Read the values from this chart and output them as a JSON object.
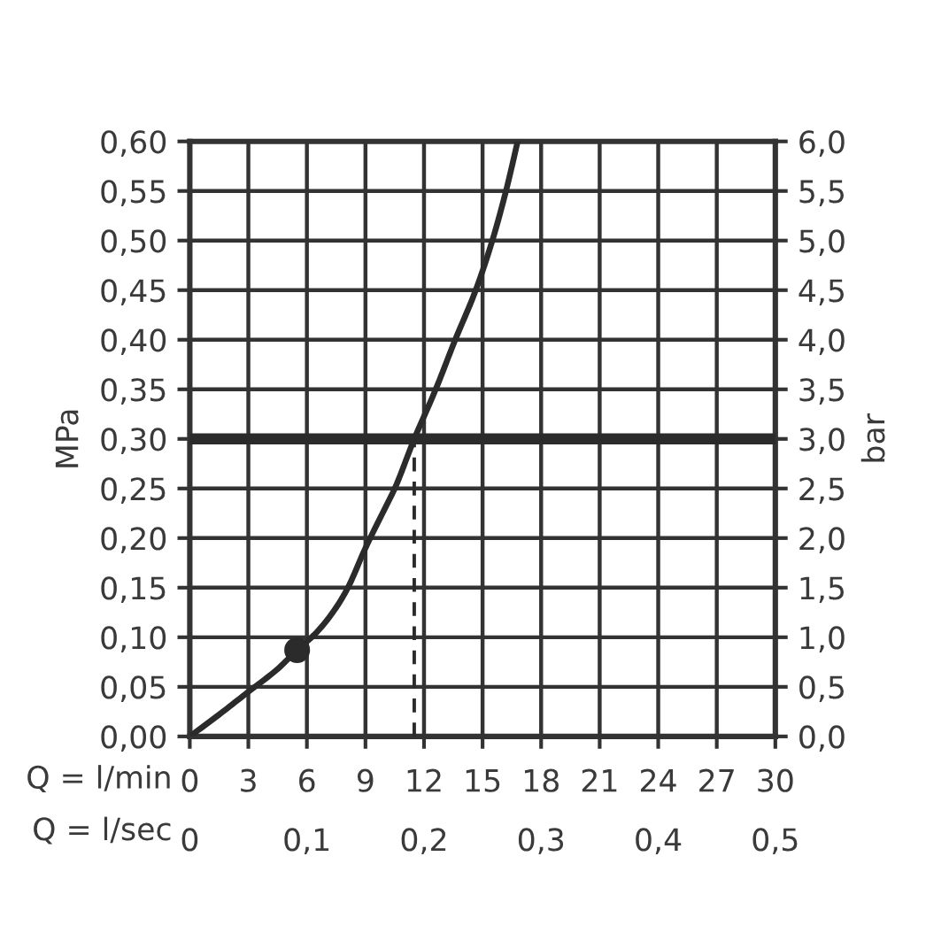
{
  "chart_data": {
    "type": "line",
    "xlabel": "Q = l/min",
    "x2label": "Q = l/sec",
    "ylabel": "MPa",
    "y2label": "bar",
    "xlim": [
      0,
      30
    ],
    "xticks": [
      0,
      3,
      6,
      9,
      12,
      15,
      18,
      21,
      24,
      27,
      30
    ],
    "x2lim": [
      0,
      0.5
    ],
    "x2ticks": [
      0,
      {
        "value": 0.1,
        "label": "0,1"
      },
      {
        "value": 0.2,
        "label": "0,2"
      },
      {
        "value": 0.3,
        "label": "0,3"
      },
      {
        "value": 0.4,
        "label": "0,4"
      },
      {
        "value": 0.5,
        "label": "0,5"
      }
    ],
    "ylim": [
      0,
      0.6
    ],
    "yticks": [
      {
        "value": 0,
        "label": "0,00"
      },
      {
        "value": 0.05,
        "label": "0,05"
      },
      {
        "value": 0.1,
        "label": "0,10"
      },
      {
        "value": 0.15,
        "label": "0,15"
      },
      {
        "value": 0.2,
        "label": "0,20"
      },
      {
        "value": 0.25,
        "label": "0,25"
      },
      {
        "value": 0.3,
        "label": "0,30"
      },
      {
        "value": 0.35,
        "label": "0,35"
      },
      {
        "value": 0.4,
        "label": "0,40"
      },
      {
        "value": 0.45,
        "label": "0,45"
      },
      {
        "value": 0.5,
        "label": "0,50"
      },
      {
        "value": 0.55,
        "label": "0,55"
      },
      {
        "value": 0.6,
        "label": "0,60"
      }
    ],
    "y2lim": [
      0,
      6
    ],
    "y2ticks": [
      {
        "value": 0,
        "label": "0,0"
      },
      {
        "value": 0.5,
        "label": "0,5"
      },
      {
        "value": 1,
        "label": "1,0"
      },
      {
        "value": 1.5,
        "label": "1,5"
      },
      {
        "value": 2,
        "label": "2,0"
      },
      {
        "value": 2.5,
        "label": "2,5"
      },
      {
        "value": 3,
        "label": "3,0"
      },
      {
        "value": 3.5,
        "label": "3,5"
      },
      {
        "value": 4,
        "label": "4,0"
      },
      {
        "value": 4.5,
        "label": "4,5"
      },
      {
        "value": 5,
        "label": "5,0"
      },
      {
        "value": 5.5,
        "label": "5,5"
      },
      {
        "value": 6,
        "label": "6,0"
      }
    ],
    "grid": true,
    "series": [
      {
        "color": "#2b2b2b",
        "line_style": "solid",
        "x": [
          0,
          1.5,
          3,
          4.5,
          5.5,
          6.5,
          7.5,
          8.1,
          9,
          10,
          10.5,
          11.5,
          12.6,
          13.6,
          14.65,
          15.5,
          16.2,
          16.8
        ],
        "values": [
          0,
          0.022,
          0.045,
          0.068,
          0.087,
          0.105,
          0.13,
          0.15,
          0.19,
          0.23,
          0.25,
          0.3,
          0.35,
          0.4,
          0.45,
          0.5,
          0.55,
          0.6
        ]
      },
      {
        "type": "line",
        "color": "#2b2b2b",
        "line_style": "dashed",
        "x": [
          11.5,
          11.5
        ],
        "values": [
          0,
          0.3
        ]
      },
      {
        "type": "scatter",
        "color": "#2b2b2b",
        "marker": "circle",
        "x": [
          5.5
        ],
        "values": [
          0.087
        ]
      }
    ],
    "ref_lines": [
      {
        "axis": "y",
        "value": 0.3,
        "color": "#2b2b2b"
      }
    ]
  }
}
